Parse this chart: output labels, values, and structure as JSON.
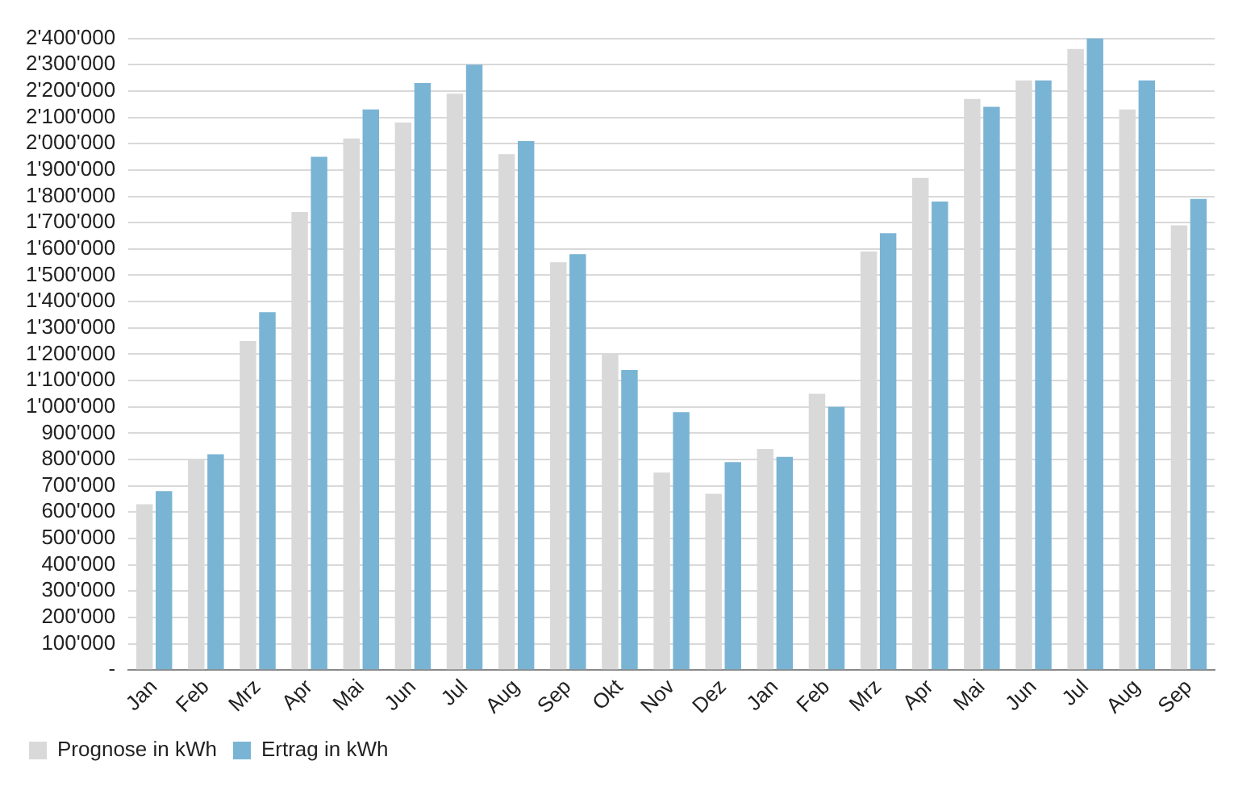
{
  "chart_data": {
    "type": "bar",
    "categories": [
      "Jan",
      "Feb",
      "Mrz",
      "Apr",
      "Mai",
      "Jun",
      "Jul",
      "Aug",
      "Sep",
      "Okt",
      "Nov",
      "Dez",
      "Jan",
      "Feb",
      "Mrz",
      "Apr",
      "Mai",
      "Jun",
      "Jul",
      "Aug",
      "Sep"
    ],
    "series": [
      {
        "name": "Prognose in kWh",
        "color": "#d9d9d9",
        "values": [
          630000,
          800000,
          1250000,
          1740000,
          2020000,
          2080000,
          2190000,
          1960000,
          1550000,
          1200000,
          750000,
          670000,
          840000,
          1050000,
          1590000,
          1870000,
          2170000,
          2240000,
          2360000,
          2130000,
          1690000
        ]
      },
      {
        "name": "Ertrag in kWh",
        "color": "#7ab4d4",
        "values": [
          680000,
          820000,
          1360000,
          1950000,
          2130000,
          2230000,
          2300000,
          2010000,
          1580000,
          1140000,
          980000,
          790000,
          810000,
          1000000,
          1660000,
          1780000,
          2140000,
          2240000,
          2400000,
          2240000,
          1790000
        ]
      }
    ],
    "ylim": [
      0,
      2400000
    ],
    "yticks": [
      {
        "value": 0,
        "label": "-"
      },
      {
        "value": 100000,
        "label": "100'000"
      },
      {
        "value": 200000,
        "label": "200'000"
      },
      {
        "value": 300000,
        "label": "300'000"
      },
      {
        "value": 400000,
        "label": "400'000"
      },
      {
        "value": 500000,
        "label": "500'000"
      },
      {
        "value": 600000,
        "label": "600'000"
      },
      {
        "value": 700000,
        "label": "700'000"
      },
      {
        "value": 800000,
        "label": "800'000"
      },
      {
        "value": 900000,
        "label": "900'000"
      },
      {
        "value": 1000000,
        "label": "1'000'000"
      },
      {
        "value": 1100000,
        "label": "1'100'000"
      },
      {
        "value": 1200000,
        "label": "1'200'000"
      },
      {
        "value": 1300000,
        "label": "1'300'000"
      },
      {
        "value": 1400000,
        "label": "1'400'000"
      },
      {
        "value": 1500000,
        "label": "1'500'000"
      },
      {
        "value": 1600000,
        "label": "1'600'000"
      },
      {
        "value": 1700000,
        "label": "1'700'000"
      },
      {
        "value": 1800000,
        "label": "1'800'000"
      },
      {
        "value": 1900000,
        "label": "1'900'000"
      },
      {
        "value": 2000000,
        "label": "2'000'000"
      },
      {
        "value": 2100000,
        "label": "2'100'000"
      },
      {
        "value": 2200000,
        "label": "2'200'000"
      },
      {
        "value": 2300000,
        "label": "2'300'000"
      },
      {
        "value": 2400000,
        "label": "2'400'000"
      }
    ],
    "grid": "y",
    "legend": "bottom left"
  }
}
